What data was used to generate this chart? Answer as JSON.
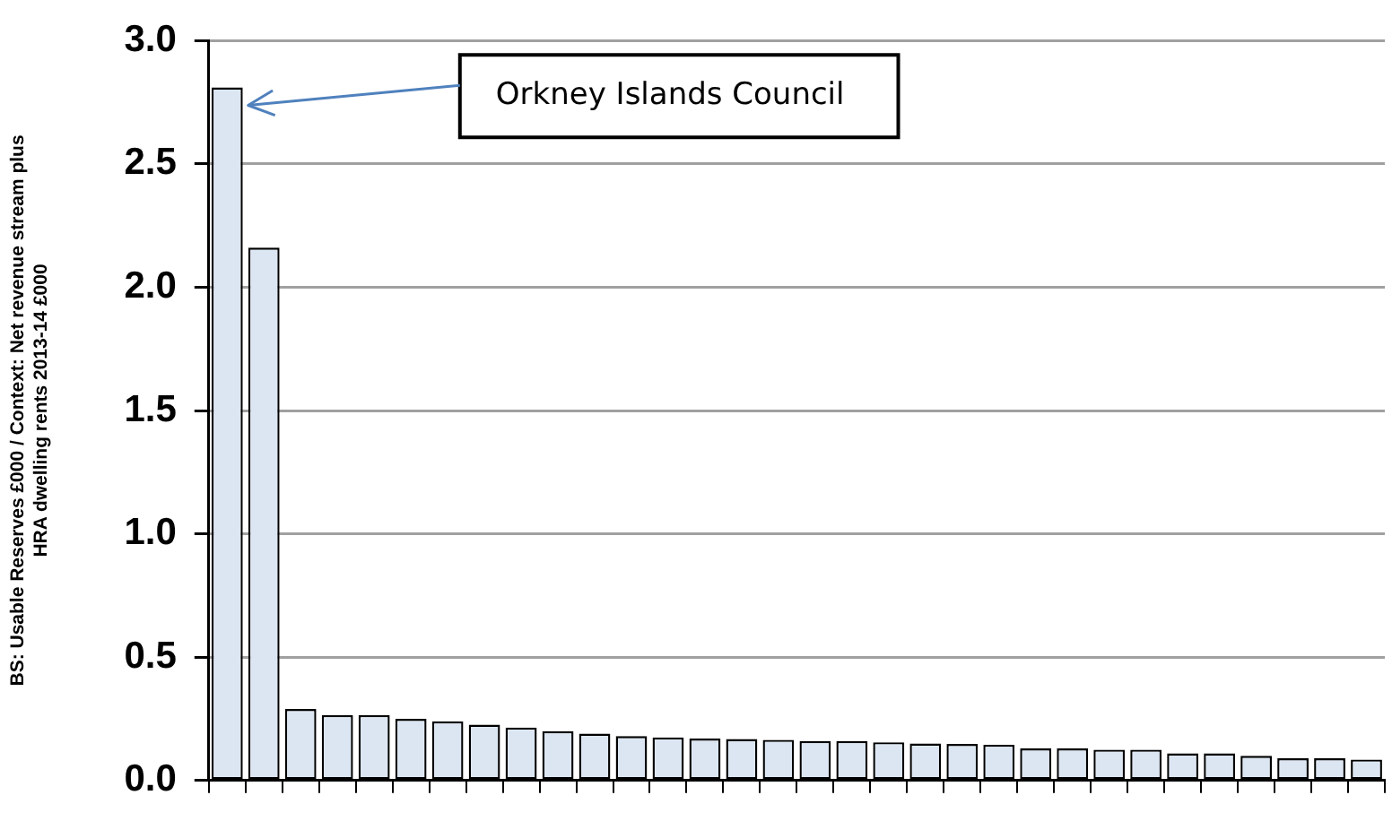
{
  "chart_data": {
    "type": "bar",
    "ylabel": "BS: Usable Reserves £000 / Context: Net revenue stream plus\nHRA dwelling rents 2013-14 £000",
    "categories": [
      null,
      null,
      null,
      null,
      null,
      null,
      null,
      null,
      null,
      null,
      null,
      null,
      null,
      null,
      null,
      null,
      null,
      null,
      null,
      null,
      null,
      null,
      null,
      null,
      null,
      null,
      null,
      null,
      null,
      null,
      null,
      null
    ],
    "values": [
      2.81,
      2.16,
      0.29,
      0.265,
      0.265,
      0.25,
      0.24,
      0.226,
      0.215,
      0.2,
      0.19,
      0.18,
      0.175,
      0.17,
      0.168,
      0.165,
      0.16,
      0.16,
      0.155,
      0.15,
      0.148,
      0.145,
      0.13,
      0.13,
      0.125,
      0.125,
      0.11,
      0.11,
      0.1,
      0.09,
      0.09,
      0.085
    ],
    "color": "#dce6f2",
    "ylim": [
      0,
      3
    ],
    "yticks": [
      {
        "value": 0,
        "label": "0.0"
      },
      0.5,
      {
        "value": 1,
        "label": "1.0"
      },
      1.5,
      {
        "value": 2,
        "label": "2.0"
      },
      2.5,
      {
        "value": 3,
        "label": "3.0"
      }
    ],
    "grid": "y",
    "annotations": [
      "Orkney Islands Council"
    ]
  }
}
